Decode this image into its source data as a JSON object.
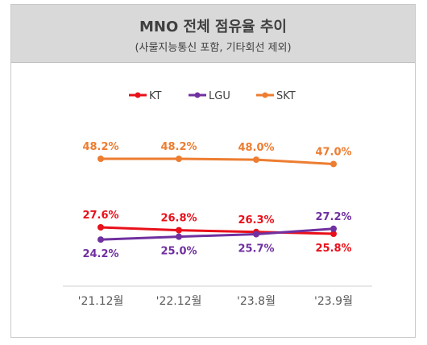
{
  "header": {
    "title": "MNO 전체 점유율 추이",
    "subtitle": "(사물지능통신 포함, 기타회선 제외)"
  },
  "chart_data": {
    "type": "line",
    "title": "MNO 전체 점유율 추이",
    "subtitle": "(사물지능통신 포함, 기타회선 제외)",
    "categories": [
      "'21.12월",
      "'22.12월",
      "'23.8월",
      "'23.9월"
    ],
    "series": [
      {
        "name": "KT",
        "color": "#e8101a",
        "values": [
          27.6,
          26.8,
          26.3,
          25.8
        ],
        "labels": [
          "27.6%",
          "26.8%",
          "26.3%",
          "25.8%"
        ],
        "label_positions": [
          "above",
          "above",
          "above",
          "below"
        ]
      },
      {
        "name": "LGU",
        "color": "#7030a0",
        "values": [
          24.2,
          25.0,
          25.7,
          27.2
        ],
        "labels": [
          "24.2%",
          "25.0%",
          "25.7%",
          "27.2%"
        ],
        "label_positions": [
          "below",
          "below",
          "below",
          "above"
        ]
      },
      {
        "name": "SKT",
        "color": "#ed7d31",
        "values": [
          48.2,
          48.2,
          48.0,
          47.0
        ],
        "labels": [
          "48.2%",
          "48.2%",
          "48.0%",
          "47.0%"
        ],
        "label_positions": [
          "above",
          "above",
          "above",
          "above"
        ]
      }
    ],
    "legend": "top-center",
    "grid": false
  }
}
